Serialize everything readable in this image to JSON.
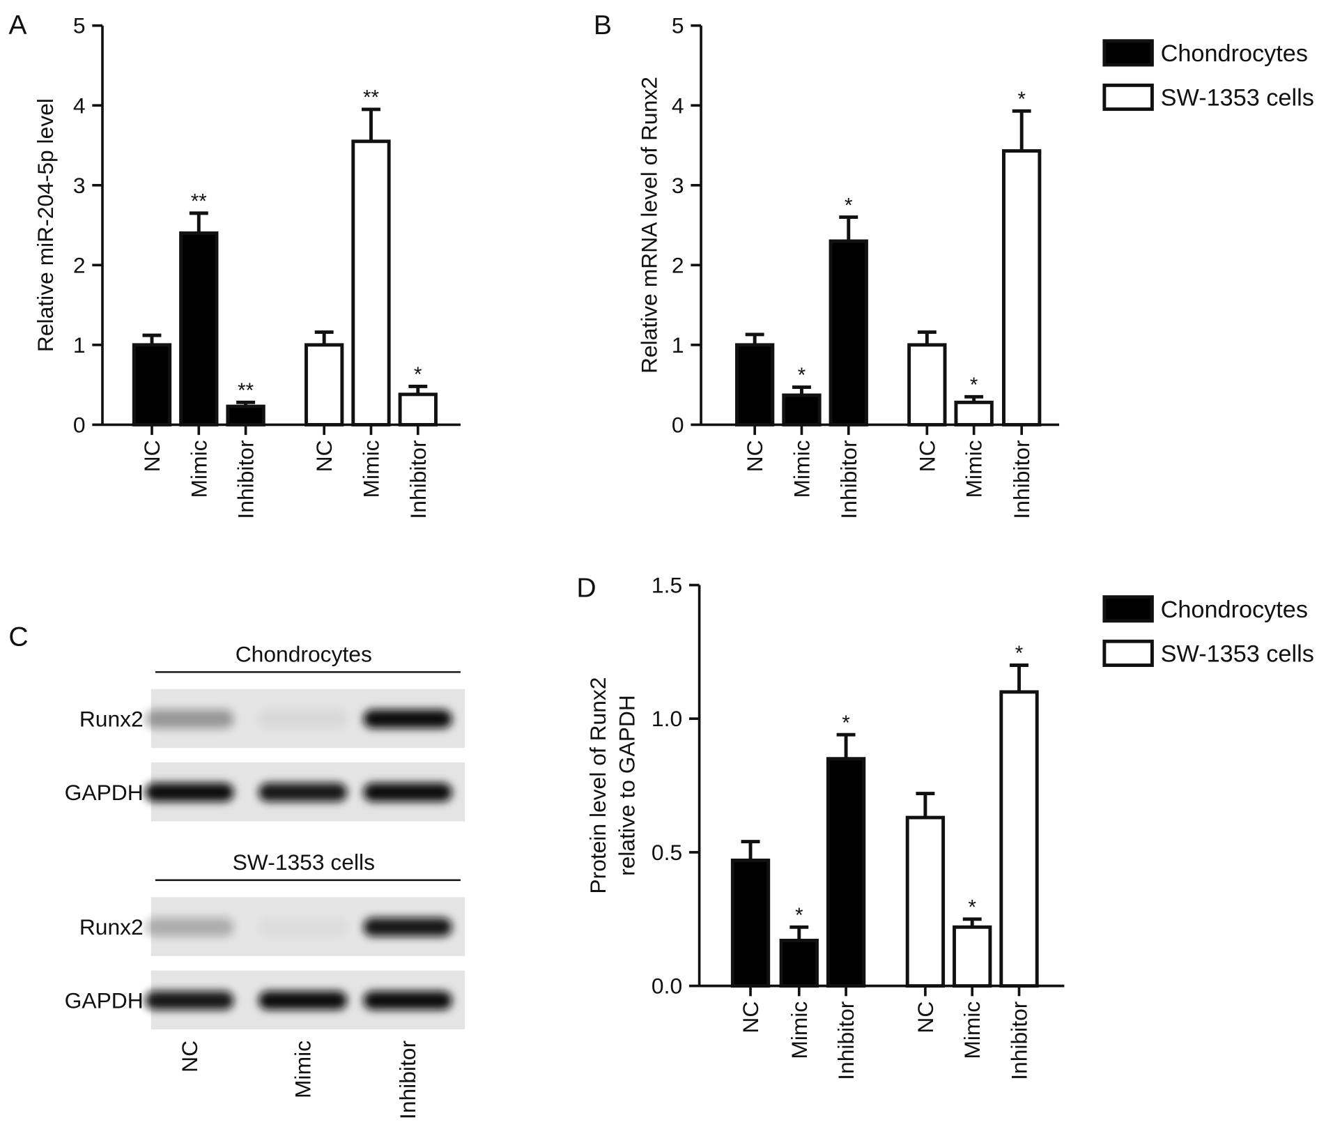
{
  "chart_data": [
    {
      "type": "bar",
      "panel": "A",
      "ylabel": "Relative miR-204-5p level",
      "categories": [
        "NC",
        "Mimic",
        "Inhibitor"
      ],
      "series": [
        {
          "color": "#000000",
          "values": [
            1.0,
            2.4,
            0.23
          ],
          "errors": [
            0.12,
            0.25,
            0.05
          ],
          "annotations": [
            null,
            "**",
            "**"
          ]
        },
        {
          "color": "#ffffff",
          "values": [
            1.0,
            3.55,
            0.38
          ],
          "errors": [
            0.16,
            0.4,
            0.1
          ],
          "annotations": [
            null,
            "**",
            "*"
          ]
        }
      ],
      "ylim": [
        0,
        5
      ],
      "yticks": [
        0,
        1,
        2,
        3,
        4,
        5
      ]
    },
    {
      "type": "bar",
      "panel": "B",
      "ylabel": "Relative mRNA level of Runx2",
      "categories": [
        "NC",
        "Mimic",
        "Inhibitor"
      ],
      "series": [
        {
          "name": "Chondrocytes",
          "color": "#000000",
          "values": [
            1.0,
            0.37,
            2.3
          ],
          "errors": [
            0.13,
            0.1,
            0.3
          ],
          "annotations": [
            null,
            "*",
            "*"
          ]
        },
        {
          "name": "SW-1353 cells",
          "color": "#ffffff",
          "values": [
            1.0,
            0.28,
            3.43
          ],
          "errors": [
            0.16,
            0.07,
            0.5
          ],
          "annotations": [
            null,
            "*",
            "*"
          ]
        }
      ],
      "ylim": [
        0,
        5
      ],
      "yticks": [
        0,
        1,
        2,
        3,
        4,
        5
      ]
    },
    {
      "type": "bar",
      "panel": "D",
      "ylabel": [
        "Protein level of Runx2",
        "relative to GAPDH"
      ],
      "categories": [
        "NC",
        "Mimic",
        "Inhibitor"
      ],
      "series": [
        {
          "name": "Chondrocytes",
          "color": "#000000",
          "values": [
            0.47,
            0.17,
            0.85
          ],
          "errors": [
            0.07,
            0.05,
            0.09
          ],
          "annotations": [
            null,
            "*",
            "*"
          ]
        },
        {
          "name": "SW-1353 cells",
          "color": "#ffffff",
          "values": [
            0.63,
            0.22,
            1.1
          ],
          "errors": [
            0.09,
            0.03,
            0.1
          ],
          "annotations": [
            null,
            "*",
            "*"
          ]
        }
      ],
      "ylim": [
        0,
        1.5
      ],
      "yticks": [
        {
          "value": 0,
          "label": "0.0"
        },
        {
          "value": 0.5,
          "label": "0.5"
        },
        {
          "value": 1,
          "label": "1.0"
        },
        {
          "value": 1.5,
          "label": "1.5"
        }
      ]
    }
  ],
  "blot": {
    "panel": "C",
    "groups": [
      {
        "title": "Chondrocytes",
        "rows": [
          "Runx2",
          "GAPDH"
        ]
      },
      {
        "title": "SW-1353 cells",
        "rows": [
          "Runx2",
          "GAPDH"
        ]
      }
    ],
    "lanes": [
      "NC",
      "Mimic",
      "Inhibitor"
    ]
  }
}
